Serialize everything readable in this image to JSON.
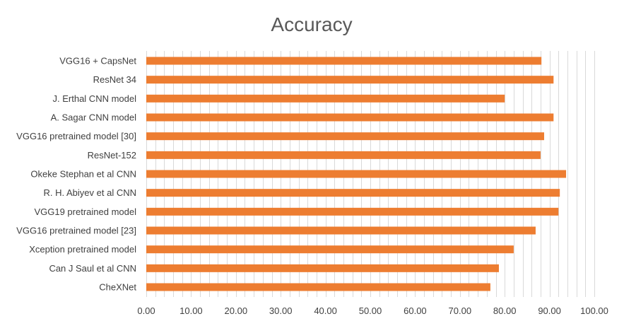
{
  "chart_data": {
    "type": "bar",
    "orientation": "horizontal",
    "title": "Accuracy",
    "xlabel": "",
    "ylabel": "",
    "xlim": [
      0,
      100
    ],
    "x_ticks": [
      "0.00",
      "10.00",
      "20.00",
      "30.00",
      "40.00",
      "50.00",
      "60.00",
      "70.00",
      "80.00",
      "90.00",
      "100.00"
    ],
    "grid": "vertical",
    "legend": "none",
    "bar_color": "#ED7D31",
    "categories": [
      "VGG16 + CapsNet",
      "ResNet 34",
      "J. Erthal CNN model",
      "A. Sagar CNN model",
      "VGG16 pretrained model [30]",
      "ResNet-152",
      "Okeke Stephan et al CNN",
      "R. H. Abiyev et al CNN",
      "VGG19 pretrained model",
      "VGG16 pretrained model [23]",
      "Xception pretrained model",
      "Can J Saul et al CNN",
      "CheXNet"
    ],
    "values": [
      88.2,
      90.9,
      80.0,
      90.9,
      88.8,
      88.0,
      93.7,
      92.3,
      92.0,
      86.9,
      82.0,
      78.7,
      76.8
    ]
  }
}
